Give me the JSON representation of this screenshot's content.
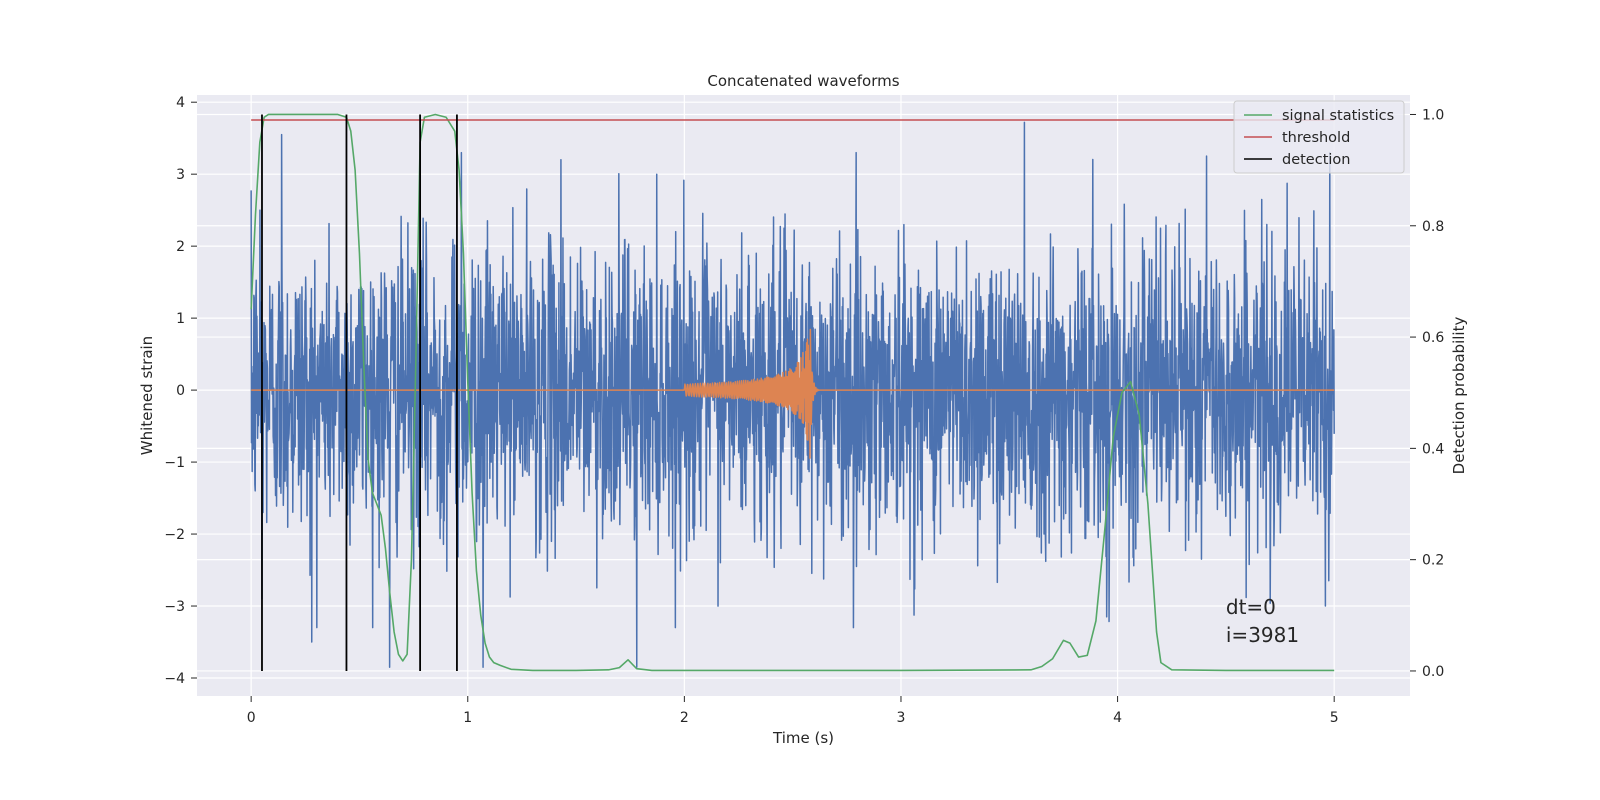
{
  "chart_data": {
    "type": "line",
    "title": "Concatenated waveforms",
    "xlabel": "Time (s)",
    "ylabel_left": "Whitened strain",
    "ylabel_right": "Detection probability",
    "xlim": [
      -0.25,
      5.35
    ],
    "ylim_left": [
      -4.25,
      4.1
    ],
    "ylim_right": [
      -0.045,
      1.035
    ],
    "x_ticks": [
      0,
      1,
      2,
      3,
      4,
      5
    ],
    "y_ticks_left": [
      -4,
      -3,
      -2,
      -1,
      0,
      1,
      2,
      3,
      4
    ],
    "y_ticks_right": [
      0.0,
      0.2,
      0.4,
      0.6,
      0.8,
      1.0
    ],
    "y_tick_labels_left": [
      "−4",
      "−3",
      "−2",
      "−1",
      "0",
      "1",
      "2",
      "3",
      "4"
    ],
    "y_tick_labels_right": [
      "0.0",
      "0.2",
      "0.4",
      "0.6",
      "0.8",
      "1.0"
    ],
    "x_tick_labels": [
      "0",
      "1",
      "2",
      "3",
      "4",
      "5"
    ],
    "grid": true,
    "legend_position": "top-right",
    "colors": {
      "noise": "#4c72b0",
      "waveform": "#dd8452",
      "signal_statistics": "#55a868",
      "threshold": "#c44e52",
      "detection": "#000000",
      "plot_background": "#eaeaf2",
      "grid": "#ffffff"
    },
    "noise_series": {
      "axis": "left",
      "color": "#4c72b0",
      "x_range": [
        0,
        5
      ],
      "typical_amplitude": 1.0,
      "peak_points": [
        {
          "x": 0.04,
          "y": 2.5
        },
        {
          "x": 0.05,
          "y": -2.9
        },
        {
          "x": 0.14,
          "y": 3.55
        },
        {
          "x": 0.28,
          "y": -3.5
        },
        {
          "x": 0.64,
          "y": -3.85
        },
        {
          "x": 0.78,
          "y": 3.2
        },
        {
          "x": 0.97,
          "y": 3.3
        },
        {
          "x": 1.07,
          "y": -3.85
        },
        {
          "x": 1.43,
          "y": 3.2
        },
        {
          "x": 1.78,
          "y": -3.85
        },
        {
          "x": 2.78,
          "y": -3.3
        },
        {
          "x": 3.57,
          "y": 3.72
        },
        {
          "x": 3.95,
          "y": -3.15
        },
        {
          "x": 4.41,
          "y": 3.25
        },
        {
          "x": 4.96,
          "y": -3.0
        },
        {
          "x": 4.98,
          "y": 3.3
        }
      ]
    },
    "waveform_series": {
      "axis": "left",
      "color": "#dd8452",
      "x_range": [
        0,
        5
      ],
      "chirp_start": 2.0,
      "merger_time": 2.58,
      "peak_amplitude": 1.08
    },
    "signal_statistics": {
      "name": "signal statistics",
      "axis": "right",
      "color": "#55a868",
      "x": [
        0,
        0.02,
        0.04,
        0.06,
        0.08,
        0.1,
        0.15,
        0.2,
        0.3,
        0.4,
        0.44,
        0.46,
        0.48,
        0.5,
        0.52,
        0.54,
        0.56,
        0.58,
        0.6,
        0.62,
        0.64,
        0.66,
        0.68,
        0.7,
        0.72,
        0.74,
        0.76,
        0.78,
        0.8,
        0.85,
        0.9,
        0.94,
        0.96,
        0.98,
        1.0,
        1.02,
        1.04,
        1.06,
        1.08,
        1.1,
        1.12,
        1.15,
        1.2,
        1.3,
        1.5,
        1.65,
        1.7,
        1.74,
        1.78,
        1.85,
        2.0,
        3.0,
        3.6,
        3.65,
        3.7,
        3.75,
        3.78,
        3.82,
        3.86,
        3.9,
        3.94,
        3.98,
        4.02,
        4.06,
        4.1,
        4.14,
        4.18,
        4.2,
        4.25,
        4.5,
        5.0
      ],
      "y": [
        0.65,
        0.82,
        0.95,
        0.995,
        1.0,
        1.0,
        1.0,
        1.0,
        1.0,
        1.0,
        0.995,
        0.97,
        0.9,
        0.75,
        0.55,
        0.38,
        0.32,
        0.3,
        0.28,
        0.22,
        0.14,
        0.07,
        0.03,
        0.018,
        0.03,
        0.2,
        0.55,
        0.95,
        0.995,
        1.0,
        0.995,
        0.97,
        0.9,
        0.75,
        0.52,
        0.32,
        0.18,
        0.1,
        0.05,
        0.025,
        0.015,
        0.01,
        0.003,
        0.001,
        0.001,
        0.002,
        0.006,
        0.02,
        0.004,
        0.001,
        0.001,
        0.001,
        0.002,
        0.008,
        0.022,
        0.055,
        0.05,
        0.025,
        0.028,
        0.09,
        0.25,
        0.42,
        0.5,
        0.52,
        0.46,
        0.3,
        0.07,
        0.015,
        0.002,
        0.001,
        0.001
      ]
    },
    "threshold": {
      "name": "threshold",
      "axis": "right",
      "color": "#c44e52",
      "x_range": [
        0,
        5
      ],
      "value": 0.99
    },
    "detections": {
      "name": "detection",
      "axis": "right",
      "color": "#000000",
      "x": [
        0.05,
        0.44,
        0.78,
        0.95
      ],
      "y_range": [
        0.0,
        1.0
      ]
    },
    "legend": [
      "signal statistics",
      "threshold",
      "detection"
    ],
    "annotation": {
      "lines": [
        "dt=0",
        "i=3981"
      ],
      "x": 4.5,
      "y_left": -3.25
    }
  }
}
